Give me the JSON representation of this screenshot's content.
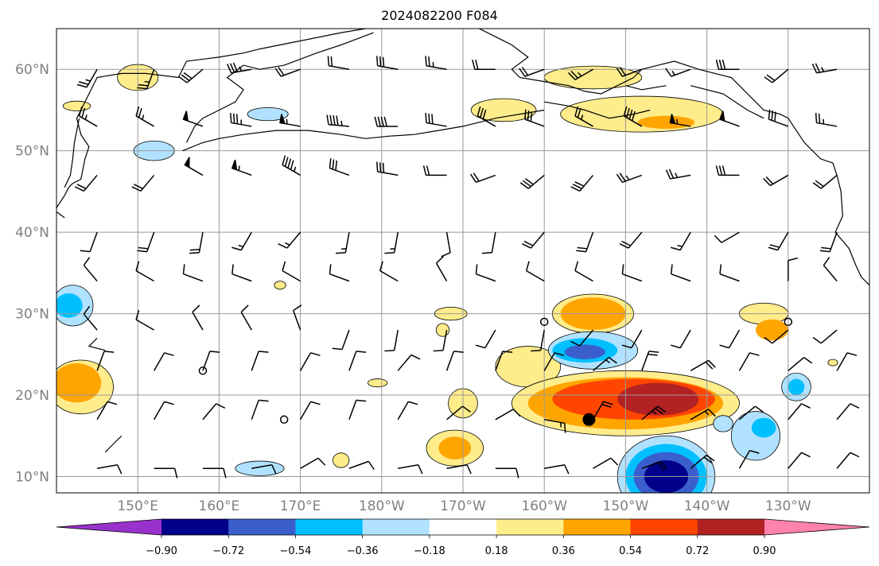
{
  "title": "2024082200 F084",
  "lat_labels": [
    "60°N",
    "50°N",
    "40°N",
    "30°N",
    "20°N",
    "10°N"
  ],
  "lon_labels": [
    "150°E",
    "160°E",
    "170°E",
    "180°W",
    "170°W",
    "160°W",
    "150°W",
    "140°W",
    "130°W"
  ],
  "extent": {
    "lon_min": 140,
    "lon_max": 240,
    "lat_min": 8,
    "lat_max": 65
  },
  "colorbar": {
    "ticks": [
      "−0.90",
      "−0.72",
      "−0.54",
      "−0.36",
      "−0.18",
      "0.18",
      "0.36",
      "0.54",
      "0.72",
      "0.90"
    ],
    "colors": [
      "#9932CC",
      "#00008B",
      "#3A5FCD",
      "#00BFFF",
      "#B0E2FF",
      "#FFFFFF",
      "#FFEC8B",
      "#FFA500",
      "#FF4500",
      "#B22222",
      "#FF82AB"
    ]
  },
  "storm_marker": {
    "lon": 205.5,
    "lat": 17
  },
  "calm_markers": [
    {
      "lon": 158,
      "lat": 23
    },
    {
      "lon": 168,
      "lat": 17
    },
    {
      "lon": 200,
      "lat": 29
    },
    {
      "lon": 230,
      "lat": 29
    }
  ],
  "fields": [
    {
      "level": 0.18,
      "lon": 198,
      "lat": 23.5,
      "rx": 4,
      "ry": 2.5
    },
    {
      "level": 0.18,
      "lon": 210,
      "lat": 19,
      "rx": 14,
      "ry": 4
    },
    {
      "level": 0.36,
      "lon": 210,
      "lat": 19,
      "rx": 12,
      "ry": 3.2
    },
    {
      "level": 0.54,
      "lon": 211,
      "lat": 19.5,
      "rx": 10,
      "ry": 2.5
    },
    {
      "level": 0.72,
      "lon": 214,
      "lat": 19.5,
      "rx": 5,
      "ry": 2
    },
    {
      "level": -0.36,
      "lon": 206,
      "lat": 25.5,
      "rx": 5.5,
      "ry": 2.3
    },
    {
      "level": -0.54,
      "lon": 205,
      "lat": 25.5,
      "rx": 4,
      "ry": 1.5
    },
    {
      "level": -0.72,
      "lon": 205,
      "lat": 25.3,
      "rx": 2.5,
      "ry": 0.9
    },
    {
      "level": 0.36,
      "lon": 206,
      "lat": 30,
      "rx": 4,
      "ry": 2
    },
    {
      "level": 0.18,
      "lon": 206,
      "lat": 30,
      "rx": 5,
      "ry": 2.4
    },
    {
      "level": -0.36,
      "lon": 215,
      "lat": 10,
      "rx": 6,
      "ry": 5
    },
    {
      "level": -0.54,
      "lon": 215,
      "lat": 10,
      "rx": 5,
      "ry": 4
    },
    {
      "level": -0.72,
      "lon": 215,
      "lat": 10,
      "rx": 4,
      "ry": 3
    },
    {
      "level": -0.9,
      "lon": 215,
      "lat": 10,
      "rx": 2.7,
      "ry": 2
    },
    {
      "level": 0.18,
      "lon": 143,
      "lat": 21,
      "rx": 4,
      "ry": 3.3
    },
    {
      "level": 0.36,
      "lon": 142.5,
      "lat": 21.5,
      "rx": 3,
      "ry": 2.4
    },
    {
      "level": 0.18,
      "lon": 212,
      "lat": 54.5,
      "rx": 10,
      "ry": 2.2
    },
    {
      "level": 0.36,
      "lon": 215,
      "lat": 53.5,
      "rx": 3.5,
      "ry": 0.8
    },
    {
      "level": 0.18,
      "lon": 195,
      "lat": 55,
      "rx": 4,
      "ry": 1.4
    },
    {
      "level": 0.18,
      "lon": 206,
      "lat": 59,
      "rx": 6,
      "ry": 1.4
    },
    {
      "level": 0.18,
      "lon": 150,
      "lat": 59,
      "rx": 2.5,
      "ry": 1.6
    },
    {
      "level": 0.18,
      "lon": 142.5,
      "lat": 55.5,
      "rx": 1.7,
      "ry": 0.6
    },
    {
      "level": -0.36,
      "lon": 152,
      "lat": 50,
      "rx": 2.5,
      "ry": 1.2
    },
    {
      "level": -0.36,
      "lon": 166,
      "lat": 54.5,
      "rx": 2.5,
      "ry": 0.8
    },
    {
      "level": -0.36,
      "lon": 142,
      "lat": 31,
      "rx": 2.5,
      "ry": 2.5
    },
    {
      "level": -0.54,
      "lon": 141.5,
      "lat": 31,
      "rx": 1.7,
      "ry": 1.5
    },
    {
      "level": 0.18,
      "lon": 190,
      "lat": 19,
      "rx": 1.8,
      "ry": 1.8
    },
    {
      "level": 0.18,
      "lon": 189,
      "lat": 13.5,
      "rx": 3.5,
      "ry": 2.2
    },
    {
      "level": 0.36,
      "lon": 189,
      "lat": 13.5,
      "rx": 2,
      "ry": 1.4
    },
    {
      "level": 0.18,
      "lon": 188.5,
      "lat": 30,
      "rx": 2,
      "ry": 0.8
    },
    {
      "level": 0.18,
      "lon": 187.5,
      "lat": 28,
      "rx": 0.8,
      "ry": 0.8
    },
    {
      "level": 0.18,
      "lon": 175,
      "lat": 12,
      "rx": 1,
      "ry": 0.9
    },
    {
      "level": -0.36,
      "lon": 165,
      "lat": 11,
      "rx": 3,
      "ry": 0.9
    },
    {
      "level": -0.36,
      "lon": 226,
      "lat": 15,
      "rx": 3,
      "ry": 3
    },
    {
      "level": -0.54,
      "lon": 227,
      "lat": 16,
      "rx": 1.5,
      "ry": 1.2
    },
    {
      "level": -0.36,
      "lon": 231,
      "lat": 21,
      "rx": 1.8,
      "ry": 1.7
    },
    {
      "level": -0.54,
      "lon": 231,
      "lat": 21,
      "rx": 1,
      "ry": 1
    },
    {
      "level": -0.36,
      "lon": 222,
      "lat": 16.5,
      "rx": 1.2,
      "ry": 1
    },
    {
      "level": 0.18,
      "lon": 227,
      "lat": 30,
      "rx": 3,
      "ry": 1.3
    },
    {
      "level": 0.36,
      "lon": 228,
      "lat": 28,
      "rx": 2,
      "ry": 1.3
    },
    {
      "level": 0.18,
      "lon": 167.5,
      "lat": 33.5,
      "rx": 0.7,
      "ry": 0.5
    },
    {
      "level": 0.18,
      "lon": 179.5,
      "lat": 21.5,
      "rx": 1.2,
      "ry": 0.5
    },
    {
      "level": 0.18,
      "lon": 235.5,
      "lat": 24,
      "rx": 0.6,
      "ry": 0.4
    }
  ],
  "barbs": [
    [
      145,
      60,
      210,
      25
    ],
    [
      152,
      60,
      200,
      25
    ],
    [
      158,
      60,
      230,
      30
    ],
    [
      164,
      60,
      260,
      35
    ],
    [
      170,
      60,
      250,
      20
    ],
    [
      176,
      60,
      280,
      20
    ],
    [
      182,
      60,
      280,
      30
    ],
    [
      188,
      60,
      280,
      25
    ],
    [
      194,
      60,
      270,
      20
    ],
    [
      200,
      60,
      250,
      20
    ],
    [
      206,
      60,
      240,
      25
    ],
    [
      212,
      60,
      250,
      20
    ],
    [
      218,
      60,
      250,
      15
    ],
    [
      224,
      60,
      270,
      30
    ],
    [
      230,
      60,
      230,
      20
    ],
    [
      236,
      60,
      260,
      25
    ],
    [
      145,
      53,
      300,
      25
    ],
    [
      152,
      53,
      300,
      25
    ],
    [
      158,
      53,
      290,
      50
    ],
    [
      164,
      53,
      280,
      35
    ],
    [
      170,
      53,
      280,
      55
    ],
    [
      176,
      53,
      275,
      45
    ],
    [
      182,
      53,
      270,
      40
    ],
    [
      188,
      53,
      280,
      30
    ],
    [
      194,
      53,
      300,
      30
    ],
    [
      200,
      53,
      290,
      30
    ],
    [
      206,
      53,
      300,
      25
    ],
    [
      212,
      53,
      300,
      40
    ],
    [
      218,
      53,
      280,
      55
    ],
    [
      224,
      53,
      290,
      50
    ],
    [
      230,
      53,
      290,
      30
    ],
    [
      236,
      53,
      280,
      25
    ],
    [
      145,
      47,
      220,
      20
    ],
    [
      152,
      47,
      220,
      20
    ],
    [
      158,
      47,
      300,
      50
    ],
    [
      164,
      47,
      290,
      55
    ],
    [
      170,
      47,
      300,
      45
    ],
    [
      176,
      47,
      290,
      30
    ],
    [
      182,
      47,
      280,
      30
    ],
    [
      188,
      47,
      270,
      20
    ],
    [
      194,
      47,
      250,
      20
    ],
    [
      200,
      47,
      230,
      30
    ],
    [
      206,
      47,
      220,
      30
    ],
    [
      212,
      47,
      250,
      25
    ],
    [
      218,
      47,
      260,
      25
    ],
    [
      224,
      47,
      270,
      30
    ],
    [
      230,
      47,
      240,
      20
    ],
    [
      236,
      47,
      230,
      20
    ],
    [
      145,
      40,
      200,
      10
    ],
    [
      152,
      40,
      200,
      20
    ],
    [
      158,
      40,
      190,
      20
    ],
    [
      164,
      40,
      210,
      15
    ],
    [
      170,
      40,
      220,
      15
    ],
    [
      176,
      40,
      190,
      15
    ],
    [
      182,
      40,
      190,
      15
    ],
    [
      188,
      40,
      170,
      10
    ],
    [
      194,
      40,
      190,
      10
    ],
    [
      200,
      40,
      220,
      20
    ],
    [
      206,
      40,
      200,
      20
    ],
    [
      212,
      40,
      220,
      20
    ],
    [
      218,
      40,
      210,
      15
    ],
    [
      224,
      40,
      240,
      10
    ],
    [
      230,
      40,
      210,
      20
    ],
    [
      236,
      40,
      200,
      20
    ],
    [
      145,
      34,
      320,
      10
    ],
    [
      152,
      34,
      300,
      10
    ],
    [
      158,
      34,
      290,
      10
    ],
    [
      164,
      34,
      290,
      10
    ],
    [
      170,
      34,
      300,
      10
    ],
    [
      176,
      34,
      290,
      10
    ],
    [
      182,
      34,
      300,
      10
    ],
    [
      188,
      34,
      330,
      10
    ],
    [
      194,
      34,
      290,
      10
    ],
    [
      200,
      34,
      300,
      10
    ],
    [
      206,
      34,
      300,
      10
    ],
    [
      212,
      34,
      290,
      10
    ],
    [
      218,
      34,
      290,
      10
    ],
    [
      224,
      34,
      290,
      10
    ],
    [
      230,
      34,
      0,
      10
    ],
    [
      236,
      34,
      320,
      10
    ],
    [
      145,
      28,
      320,
      10
    ],
    [
      152,
      28,
      300,
      10
    ],
    [
      158,
      28,
      330,
      10
    ],
    [
      164,
      28,
      330,
      10
    ],
    [
      170,
      28,
      340,
      10
    ],
    [
      176,
      28,
      200,
      10
    ],
    [
      182,
      28,
      190,
      10
    ],
    [
      188,
      28,
      190,
      10
    ],
    [
      194,
      28,
      210,
      10
    ],
    [
      200,
      28,
      190,
      10
    ],
    [
      206,
      28,
      220,
      10
    ],
    [
      212,
      28,
      210,
      10
    ],
    [
      218,
      28,
      210,
      10
    ],
    [
      224,
      28,
      210,
      10
    ],
    [
      230,
      28,
      230,
      10
    ],
    [
      236,
      28,
      230,
      10
    ],
    [
      145,
      23,
      20,
      10
    ],
    [
      152,
      23,
      30,
      10
    ],
    [
      158,
      23,
      20,
      10
    ],
    [
      164,
      23,
      20,
      10
    ],
    [
      170,
      23,
      30,
      10
    ],
    [
      176,
      23,
      20,
      10
    ],
    [
      182,
      23,
      40,
      10
    ],
    [
      188,
      23,
      20,
      10
    ],
    [
      194,
      23,
      20,
      10
    ],
    [
      200,
      23,
      30,
      10
    ],
    [
      206,
      23,
      50,
      15
    ],
    [
      212,
      23,
      20,
      20
    ],
    [
      218,
      23,
      60,
      20
    ],
    [
      224,
      23,
      30,
      10
    ],
    [
      230,
      23,
      50,
      10
    ],
    [
      236,
      23,
      30,
      10
    ],
    [
      145,
      17,
      30,
      10
    ],
    [
      152,
      17,
      30,
      10
    ],
    [
      158,
      17,
      40,
      10
    ],
    [
      164,
      17,
      20,
      10
    ],
    [
      170,
      17,
      30,
      10
    ],
    [
      176,
      17,
      20,
      10
    ],
    [
      182,
      17,
      30,
      10
    ],
    [
      188,
      17,
      50,
      10
    ],
    [
      194,
      17,
      60,
      10
    ],
    [
      200,
      17,
      100,
      15
    ],
    [
      206,
      17,
      30,
      20
    ],
    [
      212,
      17,
      50,
      25
    ],
    [
      218,
      17,
      60,
      15
    ],
    [
      224,
      17,
      50,
      10
    ],
    [
      230,
      17,
      40,
      10
    ],
    [
      236,
      17,
      40,
      10
    ],
    [
      145,
      11,
      80,
      10
    ],
    [
      152,
      11,
      90,
      10
    ],
    [
      158,
      11,
      90,
      10
    ],
    [
      164,
      11,
      80,
      10
    ],
    [
      170,
      11,
      60,
      10
    ],
    [
      176,
      11,
      70,
      10
    ],
    [
      182,
      11,
      80,
      10
    ],
    [
      188,
      11,
      80,
      10
    ],
    [
      194,
      11,
      90,
      10
    ],
    [
      200,
      11,
      80,
      10
    ],
    [
      206,
      11,
      60,
      10
    ],
    [
      212,
      11,
      70,
      20
    ],
    [
      218,
      11,
      50,
      20
    ],
    [
      224,
      11,
      30,
      10
    ],
    [
      230,
      11,
      40,
      10
    ],
    [
      236,
      11,
      40,
      10
    ]
  ]
}
